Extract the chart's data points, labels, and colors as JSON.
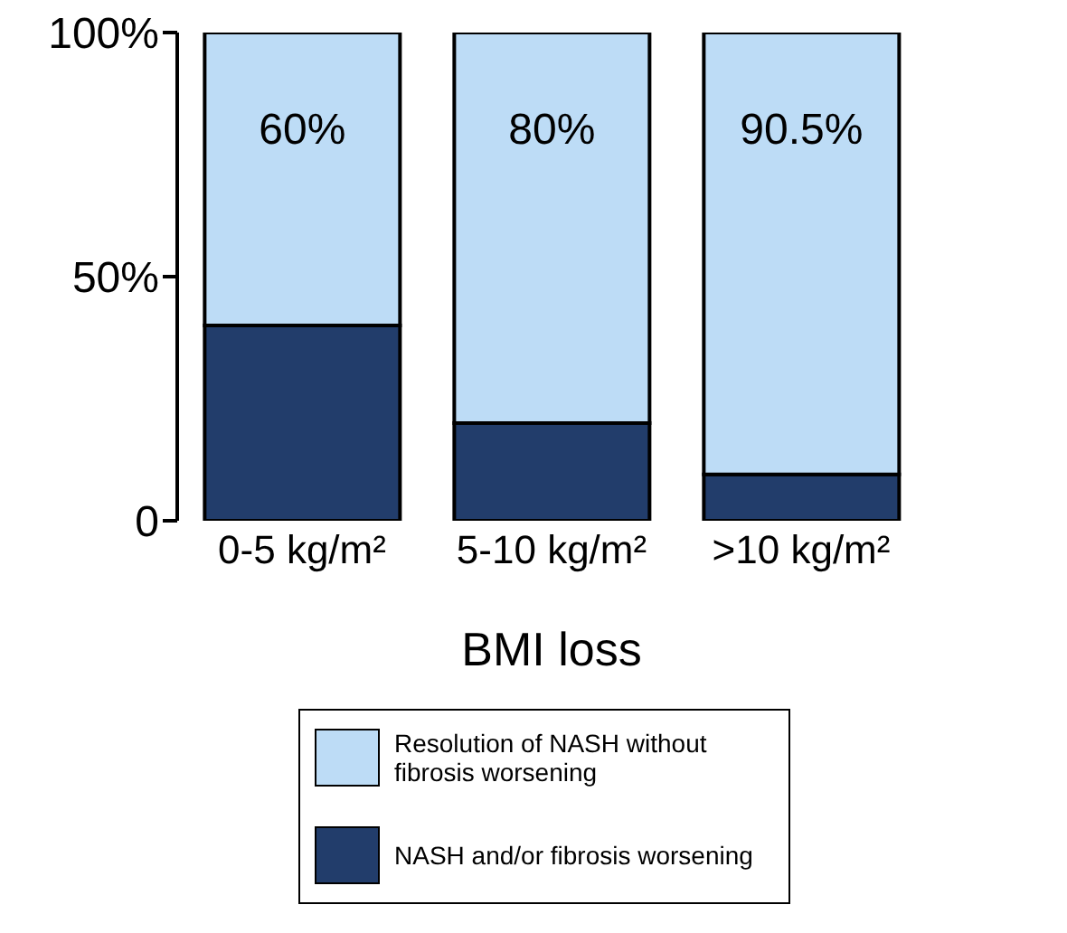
{
  "chart_data": {
    "type": "bar",
    "stacked": true,
    "xlabel": "BMI loss",
    "categories": [
      "0-5 kg/m²",
      "5-10 kg/m²",
      ">10 kg/m²"
    ],
    "series": [
      {
        "name": "NASH and/or fibrosis worsening",
        "color": "#223d6b",
        "values": [
          40,
          20,
          9.5
        ]
      },
      {
        "name": "Resolution of NASH without fibrosis worsening",
        "color": "#bddcf6",
        "values": [
          60,
          80,
          90.5
        ],
        "value_labels": [
          "60%",
          "80%",
          "90.5%"
        ]
      }
    ],
    "ylim": [
      0,
      100
    ],
    "yticks": [
      {
        "value": 0,
        "label": "0"
      },
      {
        "value": 50,
        "label": "50%"
      },
      {
        "value": 100,
        "label": "100%"
      }
    ],
    "grid": false,
    "legend": "bottom"
  }
}
